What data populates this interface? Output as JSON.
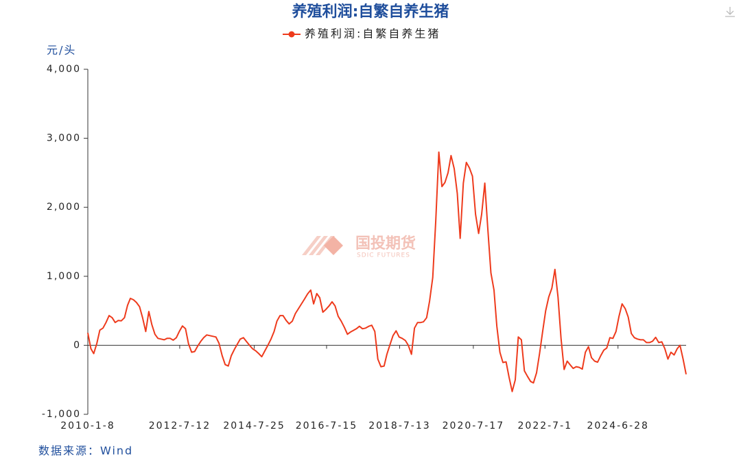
{
  "chart_data": {
    "type": "line",
    "title": "养殖利润:自繁自养生猪",
    "y_label": "元/头",
    "source": "数据来源：Wind",
    "watermark": "国投期货",
    "watermark_sub": "SDIC FUTURES",
    "x": [
      "2010-1-8",
      "2010-2-8",
      "2010-3-8",
      "2010-4-8",
      "2010-5-8",
      "2010-6-8",
      "2010-7-8",
      "2010-8-8",
      "2010-9-8",
      "2010-10-8",
      "2010-11-8",
      "2010-12-8",
      "2011-1-8",
      "2011-2-8",
      "2011-3-8",
      "2011-4-8",
      "2011-5-8",
      "2011-6-8",
      "2011-7-8",
      "2011-8-8",
      "2011-9-8",
      "2011-10-8",
      "2011-11-8",
      "2011-12-8",
      "2012-1-8",
      "2012-2-8",
      "2012-3-8",
      "2012-4-8",
      "2012-5-8",
      "2012-6-8",
      "2012-7-8",
      "2012-8-8",
      "2012-9-8",
      "2012-10-8",
      "2012-11-8",
      "2012-12-8",
      "2013-1-8",
      "2013-2-8",
      "2013-3-8",
      "2013-4-8",
      "2013-5-8",
      "2013-6-8",
      "2013-7-8",
      "2013-8-8",
      "2013-9-8",
      "2013-10-8",
      "2013-11-8",
      "2013-12-8",
      "2014-1-8",
      "2014-2-8",
      "2014-3-8",
      "2014-4-8",
      "2014-5-8",
      "2014-6-8",
      "2014-7-8",
      "2014-8-8",
      "2014-9-8",
      "2014-10-8",
      "2014-11-8",
      "2014-12-8",
      "2015-1-8",
      "2015-2-8",
      "2015-3-8",
      "2015-4-8",
      "2015-5-8",
      "2015-6-8",
      "2015-7-8",
      "2015-8-8",
      "2015-9-8",
      "2015-10-8",
      "2015-11-8",
      "2015-12-8",
      "2016-1-8",
      "2016-2-8",
      "2016-3-8",
      "2016-4-8",
      "2016-5-8",
      "2016-6-8",
      "2016-7-8",
      "2016-8-8",
      "2016-9-8",
      "2016-10-8",
      "2016-11-8",
      "2016-12-8",
      "2017-1-8",
      "2017-2-8",
      "2017-3-8",
      "2017-4-8",
      "2017-5-8",
      "2017-6-8",
      "2017-7-8",
      "2017-8-8",
      "2017-9-8",
      "2017-10-8",
      "2017-11-8",
      "2017-12-8",
      "2018-1-8",
      "2018-2-8",
      "2018-3-8",
      "2018-4-8",
      "2018-5-8",
      "2018-6-8",
      "2018-7-8",
      "2018-8-8",
      "2018-9-8",
      "2018-10-8",
      "2018-11-8",
      "2018-12-8",
      "2019-1-8",
      "2019-2-8",
      "2019-3-8",
      "2019-4-8",
      "2019-5-8",
      "2019-6-8",
      "2019-7-8",
      "2019-8-8",
      "2019-9-8",
      "2019-10-8",
      "2019-11-8",
      "2019-12-8",
      "2020-1-8",
      "2020-2-8",
      "2020-3-8",
      "2020-4-8",
      "2020-5-8",
      "2020-6-8",
      "2020-7-8",
      "2020-8-8",
      "2020-9-8",
      "2020-10-8",
      "2020-11-8",
      "2020-12-8",
      "2021-1-8",
      "2021-2-8",
      "2021-3-8",
      "2021-4-8",
      "2021-5-8",
      "2021-6-8",
      "2021-7-8",
      "2021-8-8",
      "2021-9-8",
      "2021-10-8",
      "2021-11-8",
      "2021-12-8",
      "2022-1-8",
      "2022-2-8",
      "2022-3-8",
      "2022-4-8",
      "2022-5-8",
      "2022-6-8",
      "2022-7-8",
      "2022-8-8",
      "2022-9-8",
      "2022-10-8",
      "2022-11-8",
      "2022-12-8",
      "2023-1-8",
      "2023-2-8",
      "2023-3-8",
      "2023-4-8",
      "2023-5-8",
      "2023-6-8",
      "2023-7-8",
      "2023-8-8",
      "2023-9-8",
      "2023-10-8",
      "2023-11-8",
      "2023-12-8",
      "2024-1-8",
      "2024-2-8",
      "2024-3-8",
      "2024-4-8",
      "2024-5-8",
      "2024-6-8",
      "2024-7-8",
      "2024-8-8",
      "2024-9-8",
      "2024-10-8",
      "2024-11-8",
      "2024-12-8",
      "2025-1-8",
      "2025-2-8",
      "2025-3-8",
      "2025-4-8",
      "2025-5-8",
      "2025-6-8",
      "2025-7-8",
      "2025-8-8",
      "2025-9-8",
      "2025-10-8",
      "2025-11-8",
      "2025-12-8",
      "2026-1-8",
      "2026-2-8",
      "2026-3-8",
      "2026-4-8",
      "2026-5-8"
    ],
    "series": [
      {
        "name": "养殖利润:自繁自养生猪",
        "color": "#ee3a1c",
        "values": [
          180,
          -50,
          -120,
          30,
          220,
          250,
          330,
          430,
          400,
          330,
          360,
          355,
          400,
          580,
          680,
          660,
          620,
          560,
          400,
          200,
          490,
          300,
          160,
          100,
          90,
          80,
          100,
          100,
          75,
          110,
          200,
          280,
          240,
          20,
          -100,
          -90,
          -10,
          60,
          110,
          150,
          140,
          130,
          120,
          30,
          -150,
          -280,
          -300,
          -150,
          -60,
          20,
          90,
          110,
          55,
          0,
          -50,
          -80,
          -120,
          -165,
          -80,
          0,
          90,
          200,
          350,
          430,
          430,
          360,
          310,
          350,
          460,
          530,
          600,
          670,
          745,
          800,
          600,
          750,
          690,
          480,
          520,
          570,
          630,
          570,
          420,
          350,
          260,
          160,
          190,
          215,
          240,
          275,
          240,
          250,
          275,
          290,
          200,
          -200,
          -310,
          -300,
          -130,
          10,
          140,
          210,
          120,
          100,
          70,
          0,
          -130,
          250,
          330,
          330,
          340,
          400,
          640,
          980,
          1800,
          2800,
          2300,
          2360,
          2500,
          2750,
          2560,
          2200,
          1550,
          2350,
          2650,
          2570,
          2450,
          1900,
          1620,
          1900,
          2350,
          1700,
          1050,
          800,
          280,
          -100,
          -250,
          -240,
          -460,
          -670,
          -500,
          120,
          80,
          -370,
          -450,
          -525,
          -545,
          -400,
          -120,
          200,
          500,
          700,
          830,
          1100,
          700,
          100,
          -350,
          -230,
          -280,
          -335,
          -310,
          -320,
          -345,
          -100,
          -20,
          -180,
          -230,
          -245,
          -150,
          -70,
          -40,
          110,
          100,
          200,
          420,
          600,
          530,
          410,
          170,
          110,
          90,
          80,
          80,
          40,
          40,
          60,
          115,
          40,
          50,
          -50,
          -200,
          -100,
          -140,
          -50,
          0,
          -200,
          -420
        ]
      }
    ],
    "xlim": [
      "2010-1-8",
      "2026-5-8"
    ],
    "xticks": [
      "2010-1-8",
      "2012-7-12",
      "2014-7-25",
      "2016-7-15",
      "2018-7-13",
      "2020-7-17",
      "2022-7-1",
      "2024-6-28"
    ],
    "ylim": [
      -1000,
      4000
    ],
    "yticks": [
      {
        "value": -1000,
        "label": "-1,000"
      },
      0,
      {
        "value": 1000,
        "label": "1,000"
      },
      {
        "value": 2000,
        "label": "2,000"
      },
      {
        "value": 3000,
        "label": "3,000"
      },
      {
        "value": 4000,
        "label": "4,000"
      }
    ],
    "legend": "top"
  }
}
